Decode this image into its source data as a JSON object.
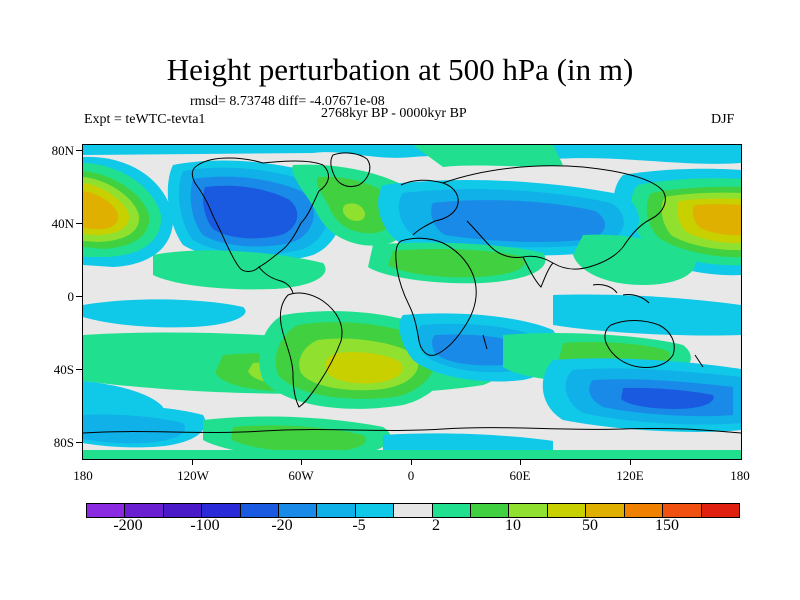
{
  "title": "Height perturbation at 500 hPa (in m)",
  "subtitle": {
    "rmsd": "rmsd= 8.73748 diff= -4.07671e-08",
    "period": "2768kyr BP - 0000kyr BP",
    "experiment": "Expt = teWTC-tevta1",
    "season": "DJF"
  },
  "axes": {
    "lat_labels": [
      "80N",
      "40N",
      "0",
      "40S",
      "80S"
    ],
    "lon_labels": [
      "180",
      "120W",
      "60W",
      "0",
      "60E",
      "120E",
      "180"
    ]
  },
  "colorbar": {
    "colors": [
      "#8a2be2",
      "#6a1fd0",
      "#4a1ac8",
      "#2a2ad8",
      "#1a5ae0",
      "#1a8ae8",
      "#10b0e8",
      "#10c8e8",
      "#e6e6e6",
      "#20e090",
      "#40d040",
      "#90e030",
      "#c8d000",
      "#e0b000",
      "#f08000",
      "#f05010",
      "#e02010"
    ],
    "labels": [
      "-200",
      "-100",
      "-20",
      "-5",
      "2",
      "10",
      "50",
      "150"
    ]
  },
  "map_colors": {
    "neutral": "#e8e8e8",
    "cyan": "#10c8e8",
    "light_blue": "#10b0e8",
    "mid_blue": "#1a8ae8",
    "blue": "#1a5ae0",
    "teal": "#20e090",
    "green": "#40d040",
    "yellow_green": "#90e030",
    "yellow": "#c8d000",
    "orange": "#e0b000",
    "coast": "#000000"
  }
}
